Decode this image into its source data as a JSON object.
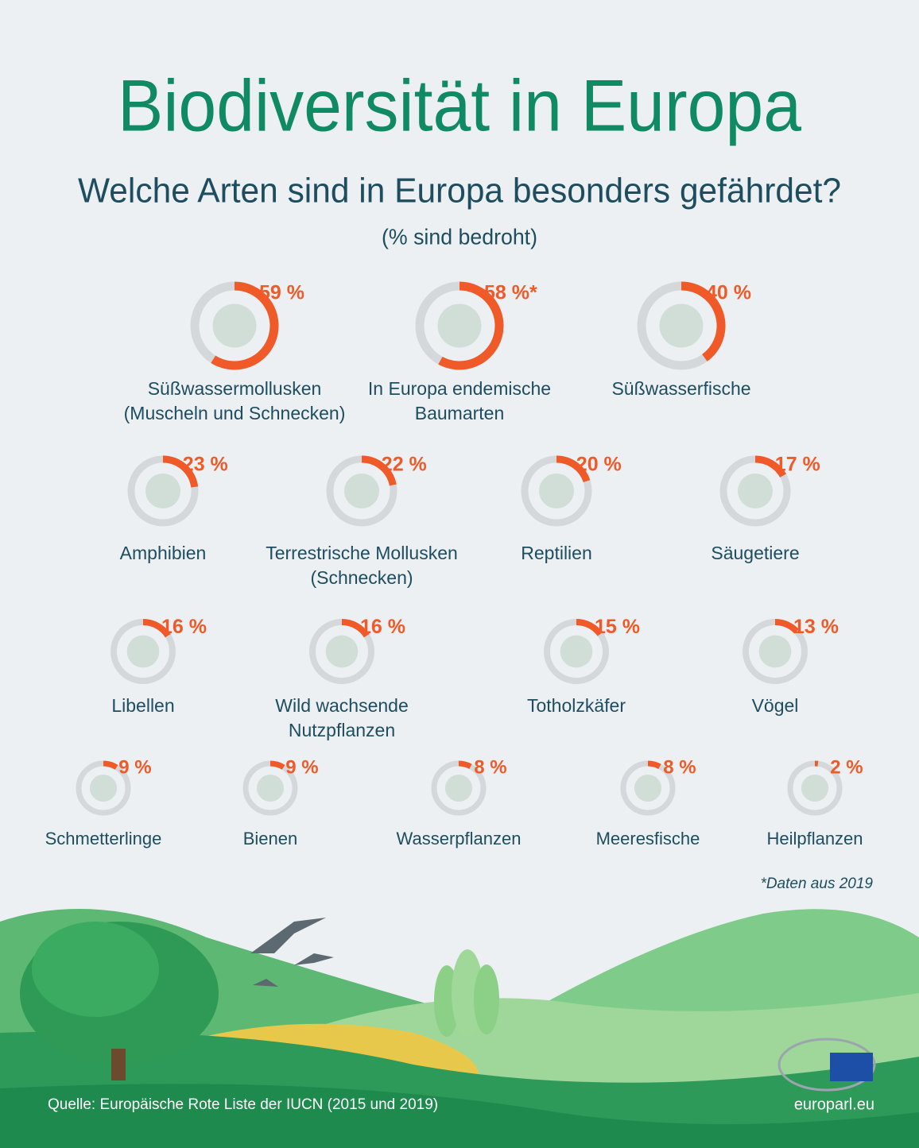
{
  "chart_data": {
    "type": "donut",
    "title": "Biodiversität in Europa",
    "subtitle": "Welche Arten sind in Europa besonders gefährdet?",
    "unit_note": "(% sind bedroht)",
    "categories": [
      [
        "Süßwassermollusken",
        "(Muscheln und Schnecken)"
      ],
      [
        "In Europa endemische",
        "Baumarten"
      ],
      [
        "Süßwasserfische"
      ],
      [
        "Amphibien"
      ],
      [
        "Terrestrische Mollusken",
        "(Schnecken)"
      ],
      [
        "Reptilien"
      ],
      [
        "Säugetiere"
      ],
      [
        "Libellen"
      ],
      [
        "Wild wachsende",
        "Nutzpflanzen"
      ],
      [
        "Totholzkäfer"
      ],
      [
        "Vögel"
      ],
      [
        "Schmetterlinge"
      ],
      [
        "Bienen"
      ],
      [
        "Wasserpflanzen"
      ],
      [
        "Meeresfische"
      ],
      [
        "Heilpflanzen"
      ]
    ],
    "values": [
      59,
      58,
      40,
      23,
      22,
      20,
      17,
      16,
      16,
      15,
      13,
      9,
      9,
      8,
      8,
      2
    ],
    "value_labels": [
      "59 %",
      "58 %*",
      "40 %",
      "23 %",
      "22 %",
      "20 %",
      "17 %",
      "16 %",
      "16 %",
      "15 %",
      "13 %",
      "9 %",
      "9 %",
      "8 %",
      "8 %",
      "2 %"
    ],
    "ylim": [
      0,
      100
    ],
    "color": "#f05a28",
    "track_color": "#d5d8db",
    "footnote": "*Daten aus 2019",
    "source": "Quelle: Europäische Rote Liste der IUCN (2015 und 2019)",
    "website": "europarl.eu"
  }
}
